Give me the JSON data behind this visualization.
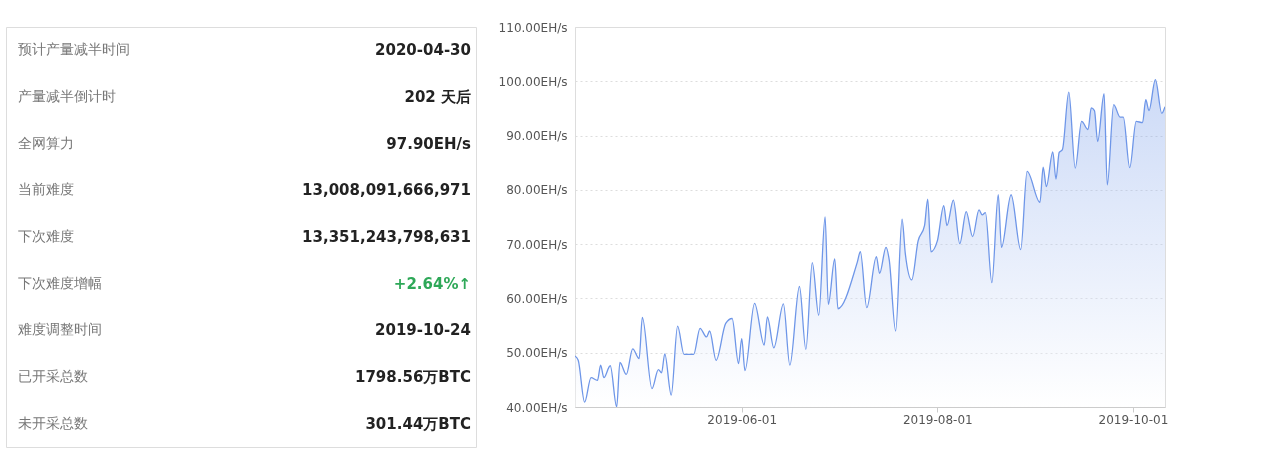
{
  "chart_data": [
    {
      "type": "other",
      "categories": [
        "预计产量减半时间",
        "产量减半倒计时",
        "全网算力",
        "当前难度",
        "下次难度",
        "下次难度增幅",
        "难度调整时间",
        "已开采总数",
        "未开采总数"
      ],
      "value_labels": [
        "2020-04-30",
        "202 天后",
        "97.90EH/s",
        "13,008,091,666,971",
        "13,351,243,798,631",
        "+2.64%↑",
        "2019-10-24",
        "1798.56万BTC",
        "301.44万BTC"
      ],
      "colors": [
        "#222222",
        "#222222",
        "#222222",
        "#222222",
        "#222222",
        "#2ea858",
        "#222222",
        "#222222",
        "#222222"
      ]
    },
    {
      "type": "area",
      "series": [
        {
          "color": "#6e96e8",
          "x": [
            "2019-04-10",
            "2019-04-11",
            "2019-04-13",
            "2019-04-15",
            "2019-04-17",
            "2019-04-18",
            "2019-04-19",
            "2019-04-21",
            "2019-04-23",
            "2019-04-24",
            "2019-04-26",
            "2019-04-28",
            "2019-04-30",
            "2019-05-01",
            "2019-05-04",
            "2019-05-06",
            "2019-05-07",
            "2019-05-08",
            "2019-05-10",
            "2019-05-12",
            "2019-05-14",
            "2019-05-17",
            "2019-05-19",
            "2019-05-21",
            "2019-05-22",
            "2019-05-24",
            "2019-05-27",
            "2019-05-29",
            "2019-05-31",
            "2019-06-01",
            "2019-06-02",
            "2019-06-05",
            "2019-06-08",
            "2019-06-09",
            "2019-06-11",
            "2019-06-14",
            "2019-06-16",
            "2019-06-19",
            "2019-06-21",
            "2019-06-23",
            "2019-06-25",
            "2019-06-27",
            "2019-06-28",
            "2019-06-30",
            "2019-07-01",
            "2019-07-07",
            "2019-07-08",
            "2019-07-10",
            "2019-07-13",
            "2019-07-14",
            "2019-07-16",
            "2019-07-17",
            "2019-07-19",
            "2019-07-21",
            "2019-07-22",
            "2019-07-24",
            "2019-07-26",
            "2019-07-28",
            "2019-07-29",
            "2019-07-30",
            "2019-08-01",
            "2019-08-03",
            "2019-08-04",
            "2019-08-06",
            "2019-08-08",
            "2019-08-10",
            "2019-08-12",
            "2019-08-14",
            "2019-08-15",
            "2019-08-16",
            "2019-08-18",
            "2019-08-20",
            "2019-08-21",
            "2019-08-24",
            "2019-08-27",
            "2019-08-29",
            "2019-09-02",
            "2019-09-03",
            "2019-09-04",
            "2019-09-06",
            "2019-09-07",
            "2019-09-08",
            "2019-09-09",
            "2019-09-11",
            "2019-09-13",
            "2019-09-15",
            "2019-09-17",
            "2019-09-18",
            "2019-09-19",
            "2019-09-20",
            "2019-09-22",
            "2019-09-23",
            "2019-09-25",
            "2019-09-27",
            "2019-09-28",
            "2019-09-30",
            "2019-10-02",
            "2019-10-04",
            "2019-10-05",
            "2019-10-06",
            "2019-10-08",
            "2019-10-10",
            "2019-10-11"
          ],
          "values": [
            49.4,
            48.6,
            40.9,
            45.4,
            44.9,
            47.7,
            45.4,
            47.6,
            40.0,
            48.2,
            46.0,
            50.7,
            48.9,
            56.5,
            43.4,
            46.9,
            46.3,
            49.8,
            42.2,
            54.9,
            49.7,
            49.7,
            54.5,
            52.9,
            54.0,
            48.6,
            55.4,
            56.3,
            48.0,
            52.6,
            46.7,
            59.1,
            51.4,
            56.6,
            50.9,
            59.0,
            47.7,
            62.2,
            50.6,
            66.6,
            56.9,
            75.0,
            58.9,
            67.3,
            58.1,
            66.6,
            68.6,
            58.3,
            67.7,
            64.6,
            69.4,
            67.1,
            54.0,
            74.6,
            68.3,
            63.4,
            70.6,
            73.4,
            78.3,
            68.6,
            70.6,
            77.1,
            73.4,
            78.1,
            70.1,
            76.0,
            71.4,
            76.3,
            75.4,
            75.8,
            62.9,
            79.1,
            69.4,
            79.1,
            69.0,
            83.4,
            77.7,
            84.2,
            80.6,
            87.0,
            82.0,
            86.9,
            87.4,
            98.0,
            84.0,
            92.6,
            91.1,
            95.1,
            94.6,
            88.9,
            97.7,
            80.9,
            95.7,
            93.4,
            93.4,
            84.1,
            92.6,
            92.4,
            96.6,
            94.6,
            100.3,
            94.1,
            95.3
          ]
        }
      ],
      "xlim": [
        "2019-04-10",
        "2019-10-11"
      ],
      "xticks": [
        "2019-06-01",
        "2019-08-01",
        "2019-10-01"
      ],
      "ylim": [
        40,
        110
      ],
      "yticks": [
        {
          "value": 40,
          "label": "40.00EH/s"
        },
        {
          "value": 50,
          "label": "50.00EH/s"
        },
        {
          "value": 60,
          "label": "60.00EH/s"
        },
        {
          "value": 70,
          "label": "70.00EH/s"
        },
        {
          "value": 80,
          "label": "80.00EH/s"
        },
        {
          "value": 90,
          "label": "90.00EH/s"
        },
        {
          "value": 100,
          "label": "100.00EH/s"
        },
        {
          "value": 110,
          "label": "110.00EH/s"
        }
      ],
      "grid": "y",
      "marker": "none"
    }
  ]
}
